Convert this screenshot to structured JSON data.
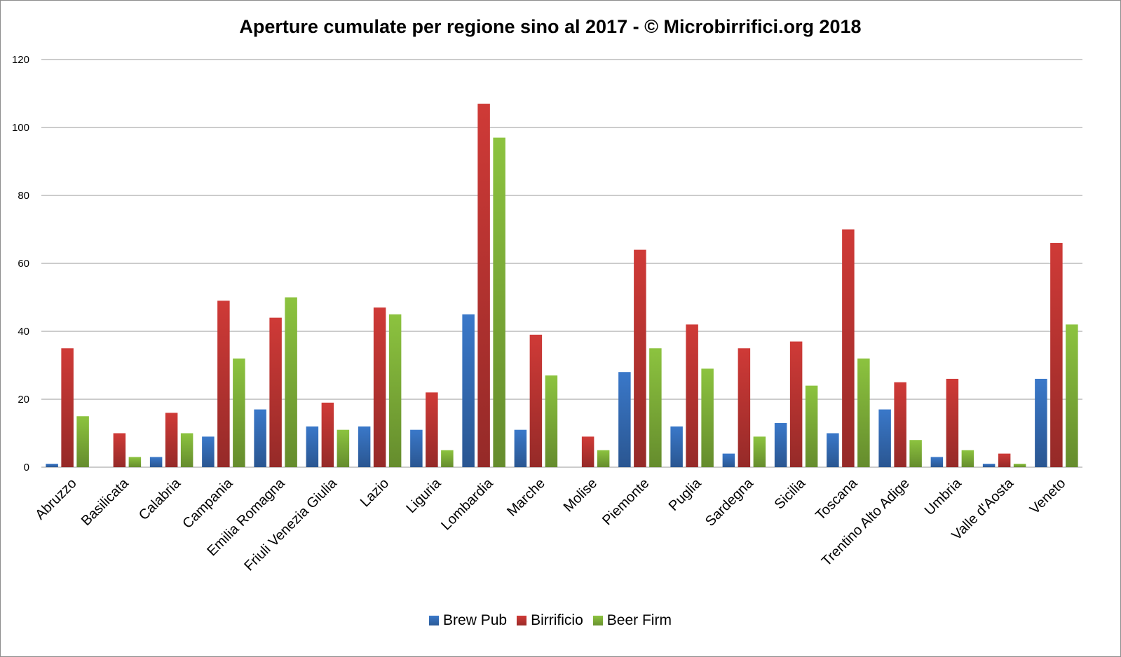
{
  "chart_data": {
    "type": "bar",
    "title": "Aperture cumulate per regione sino al 2017 - © Microbirrifici.org 2018",
    "xlabel": "",
    "ylabel": "",
    "ylim": [
      0,
      120
    ],
    "yticks": [
      0,
      20,
      40,
      60,
      80,
      100,
      120
    ],
    "grid": true,
    "legend_position": "bottom",
    "categories": [
      "Abruzzo",
      "Basilicata",
      "Calabria",
      "Campania",
      "Emilia Romagna",
      "Friuli Venezia Giulia",
      "Lazio",
      "Liguria",
      "Lombardia",
      "Marche",
      "Molise",
      "Piemonte",
      "Puglia",
      "Sardegna",
      "Sicilia",
      "Toscana",
      "Trentino Alto Adige",
      "Umbria",
      "Valle d'Aosta",
      "Veneto"
    ],
    "series": [
      {
        "name": "Brew Pub",
        "color": "#3a78c9",
        "values": [
          1,
          0,
          3,
          9,
          17,
          12,
          12,
          11,
          45,
          11,
          0,
          28,
          12,
          4,
          13,
          10,
          17,
          3,
          1,
          26
        ]
      },
      {
        "name": "Birrificio",
        "color": "#cf3a37",
        "values": [
          35,
          10,
          16,
          49,
          44,
          19,
          47,
          22,
          107,
          39,
          9,
          64,
          42,
          35,
          37,
          70,
          25,
          26,
          4,
          66
        ]
      },
      {
        "name": "Beer Firm",
        "color": "#8cc33f",
        "values": [
          15,
          3,
          10,
          32,
          50,
          11,
          45,
          5,
          97,
          27,
          5,
          35,
          29,
          9,
          24,
          32,
          8,
          5,
          1,
          42
        ]
      }
    ]
  }
}
